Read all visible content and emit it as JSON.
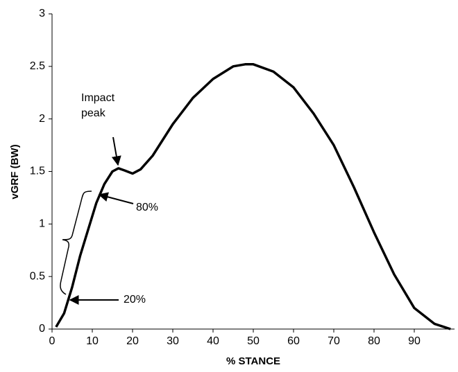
{
  "chart_data": {
    "type": "line",
    "x_label": "% STANCE",
    "y_label": "vGRF (BW)",
    "x": [
      1,
      3,
      5,
      7,
      9,
      11,
      13,
      15,
      16.5,
      18,
      20,
      22,
      25,
      30,
      35,
      40,
      45,
      48,
      50,
      55,
      60,
      65,
      70,
      75,
      80,
      85,
      90,
      95,
      99
    ],
    "values": [
      0.02,
      0.15,
      0.4,
      0.7,
      0.95,
      1.2,
      1.38,
      1.5,
      1.53,
      1.51,
      1.48,
      1.52,
      1.65,
      1.95,
      2.2,
      2.38,
      2.5,
      2.52,
      2.52,
      2.45,
      2.3,
      2.05,
      1.75,
      1.35,
      0.92,
      0.52,
      0.2,
      0.05,
      0.0
    ],
    "color": "#000000",
    "xlim": [
      0,
      100
    ],
    "xticks": [
      0,
      10,
      20,
      30,
      40,
      50,
      60,
      70,
      80,
      90
    ],
    "ylim": [
      0,
      3
    ],
    "yticks": [
      0,
      0.5,
      1,
      1.5,
      2,
      2.5,
      3
    ],
    "annotations": [
      {
        "lines": [
          "Impact",
          "peak"
        ]
      },
      {
        "lines": [
          "80%"
        ]
      },
      {
        "lines": [
          "20%"
        ]
      }
    ]
  }
}
